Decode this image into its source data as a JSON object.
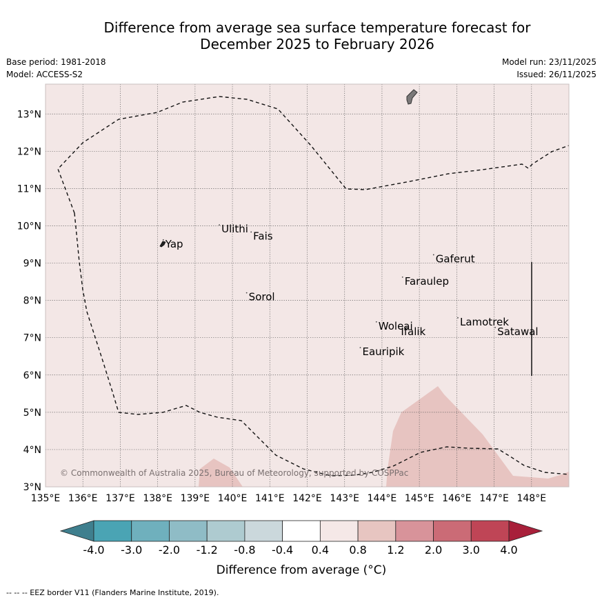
{
  "title": {
    "line1": "Difference from average sea surface temperature forecast for",
    "line2": "December 2025 to February 2026"
  },
  "meta_left": {
    "base_period": "Base period: 1981-2018",
    "model": "Model: ACCESS-S2"
  },
  "meta_right": {
    "model_run": "Model run: 23/11/2025",
    "issued": "Issued: 26/11/2025"
  },
  "map": {
    "lon_range": [
      135,
      149
    ],
    "lat_range": [
      3,
      13.8
    ],
    "lon_ticks": [
      "135°E",
      "136°E",
      "137°E",
      "138°E",
      "139°E",
      "140°E",
      "141°E",
      "142°E",
      "143°E",
      "144°E",
      "145°E",
      "146°E",
      "147°E",
      "148°E"
    ],
    "lat_ticks": [
      "3°N",
      "4°N",
      "5°N",
      "6°N",
      "7°N",
      "8°N",
      "9°N",
      "10°N",
      "11°N",
      "12°N",
      "13°N"
    ],
    "background_color": "#f3e7e6",
    "warm_patch_color": "#e7c4c1",
    "places": [
      {
        "name": "Yap",
        "lon": 138.15,
        "lat": 9.55
      },
      {
        "name": "Ulithi",
        "lon": 139.65,
        "lat": 9.95
      },
      {
        "name": "Fais",
        "lon": 140.5,
        "lat": 9.76
      },
      {
        "name": "Gaferut",
        "lon": 145.38,
        "lat": 9.15
      },
      {
        "name": "Faraulep",
        "lon": 144.55,
        "lat": 8.55
      },
      {
        "name": "Sorol",
        "lon": 140.38,
        "lat": 8.13
      },
      {
        "name": "Lamotrek",
        "lon": 146.03,
        "lat": 7.46
      },
      {
        "name": "Woleai",
        "lon": 143.85,
        "lat": 7.35
      },
      {
        "name": "Ifalik",
        "lon": 144.45,
        "lat": 7.2
      },
      {
        "name": "Satawal",
        "lon": 147.03,
        "lat": 7.2
      },
      {
        "name": "Eauripik",
        "lon": 143.42,
        "lat": 6.66
      }
    ],
    "copyright": "© Commonwealth of Australia 2025, Bureau of Meteorology, supported by COSPPac"
  },
  "colorbar": {
    "label": "Difference from average (°C)",
    "tick_labels": [
      "-4.0",
      "-3.0",
      "-2.0",
      "-1.2",
      "-0.8",
      "-0.4",
      "0.4",
      "0.8",
      "1.2",
      "2.0",
      "3.0",
      "4.0"
    ],
    "colors": [
      "#3f7f8e",
      "#4aa4b4",
      "#6fb0bd",
      "#8fbcc6",
      "#aecbd0",
      "#cbd8dc",
      "#ffffff",
      "#f5e8e7",
      "#e7c5c1",
      "#d8939a",
      "#cb6b76",
      "#bf4556",
      "#a8203a"
    ]
  },
  "footnote": "-- -- -- EEZ border V11 (Flanders Marine Institute, 2019)."
}
